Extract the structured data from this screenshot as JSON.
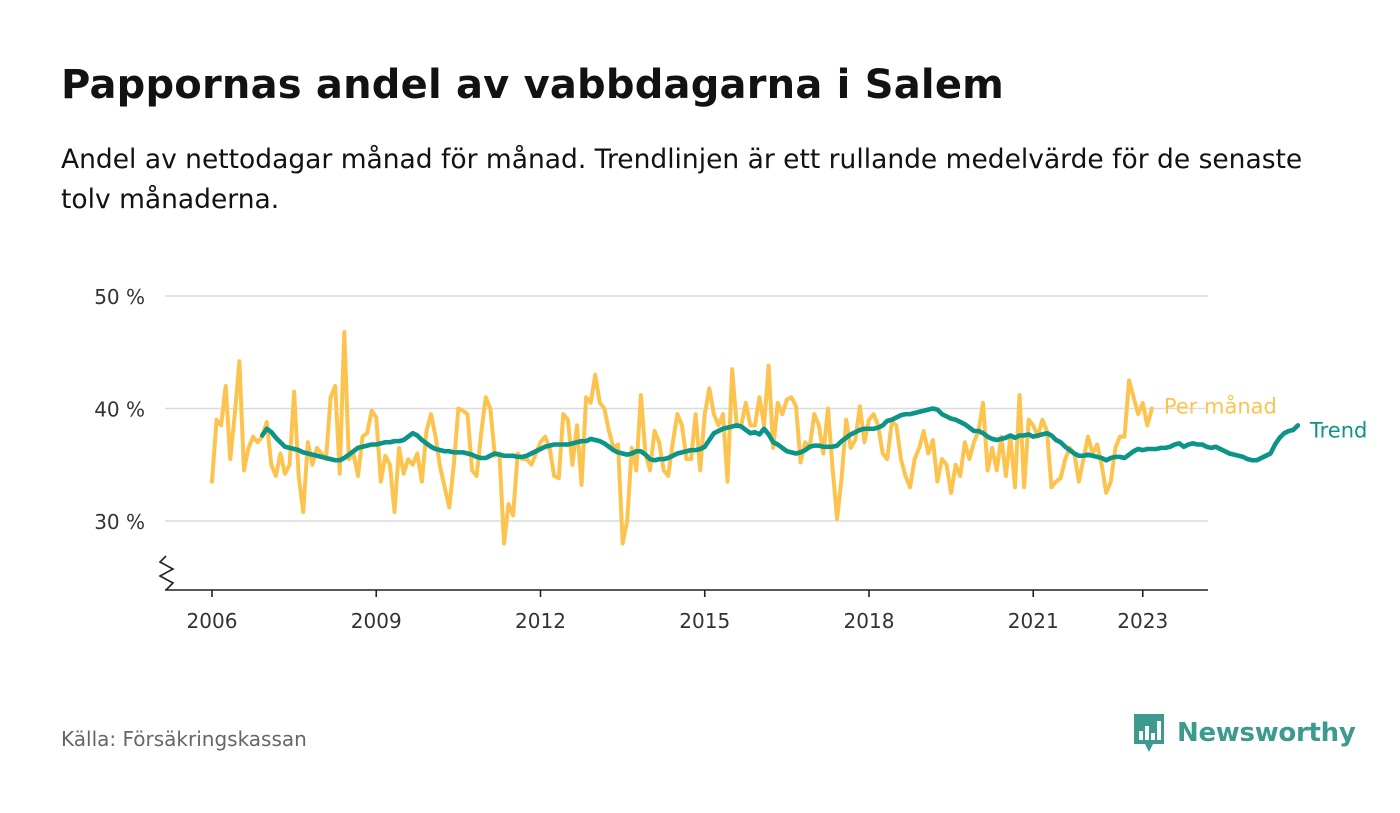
{
  "title": "Pappornas andel av vabbdagarna i Salem",
  "subtitle": "Andel av nettodagar månad för månad. Trendlinjen är ett rullande medelvärde för de senaste tolv månaderna.",
  "source": "Källa: Försäkringskassan",
  "brand": {
    "name": "Newsworthy",
    "color": "#3d9a8f"
  },
  "chart_data": {
    "type": "line",
    "title": "Pappornas andel av vabbdagarna i Salem",
    "xlabel": "",
    "ylabel": "",
    "x_ticks": [
      "2006",
      "2009",
      "2012",
      "2015",
      "2018",
      "2021",
      "2023"
    ],
    "y_ticks": [
      "30 %",
      "40 %",
      "50 %"
    ],
    "ylim": [
      25,
      50
    ],
    "xlim": [
      "2005-08",
      "2024-09"
    ],
    "grid": true,
    "legend": "inline labels at right end of lines",
    "start_month": "2006-01",
    "series": [
      {
        "name": "Per månad",
        "color": "#fcc44f",
        "values": [
          33.5,
          39.0,
          38.5,
          42.0,
          35.5,
          39.5,
          44.2,
          34.5,
          36.5,
          37.5,
          37.0,
          37.5,
          38.8,
          35.0,
          34.0,
          36.0,
          34.2,
          35.0,
          41.5,
          34.0,
          30.8,
          37.0,
          35.0,
          36.5,
          36.0,
          35.5,
          41.0,
          42.0,
          34.2,
          46.8,
          35.5,
          36.0,
          34.0,
          37.5,
          37.8,
          39.8,
          39.2,
          33.5,
          35.8,
          35.0,
          30.8,
          36.5,
          34.2,
          35.5,
          35.0,
          36.0,
          33.5,
          38.0,
          39.5,
          37.5,
          34.8,
          33.0,
          31.2,
          35.0,
          40.0,
          39.8,
          39.5,
          34.5,
          34.0,
          37.8,
          41.0,
          40.0,
          35.8,
          36.0,
          28.0,
          31.5,
          30.5,
          36.0,
          35.5,
          35.5,
          35.0,
          36.0,
          37.0,
          37.5,
          36.5,
          34.0,
          33.8,
          39.5,
          39.0,
          35.0,
          38.5,
          33.2,
          41.0,
          40.5,
          43.0,
          40.5,
          40.0,
          38.0,
          36.5,
          36.8,
          28.0,
          30.0,
          36.5,
          34.5,
          41.2,
          36.0,
          34.5,
          38.0,
          37.0,
          34.5,
          34.0,
          37.0,
          39.5,
          38.5,
          35.5,
          35.5,
          39.5,
          34.5,
          39.5,
          41.8,
          39.5,
          38.5,
          39.5,
          33.5,
          43.5,
          38.5,
          38.5,
          40.5,
          38.5,
          38.5,
          41.0,
          38.5,
          43.8,
          36.5,
          40.5,
          39.5,
          40.8,
          41.0,
          40.2,
          35.2,
          37.0,
          36.5,
          39.5,
          38.5,
          36.0,
          40.0,
          34.8,
          30.2,
          33.8,
          39.0,
          36.5,
          37.2,
          40.2,
          37.0,
          39.0,
          39.5,
          38.5,
          36.0,
          35.5,
          38.8,
          38.5,
          35.5,
          34.0,
          33.0,
          35.5,
          36.5,
          38.0,
          36.0,
          37.2,
          33.5,
          35.5,
          35.0,
          32.5,
          35.0,
          34.0,
          37.0,
          35.5,
          37.0,
          38.0,
          40.5,
          34.5,
          36.5,
          34.5,
          37.5,
          34.0,
          37.5,
          33.0,
          41.2,
          33.0,
          39.0,
          38.5,
          37.5,
          39.0,
          38.0,
          33.0,
          33.5,
          33.8,
          35.5,
          36.5,
          36.0,
          33.5,
          35.5,
          37.5,
          36.0,
          36.8,
          35.0,
          32.5,
          33.5,
          36.5,
          37.5,
          37.5,
          42.5,
          41.0,
          39.5,
          40.5,
          38.5,
          40.0
        ]
      },
      {
        "name": "Trend",
        "color": "#0d9488",
        "start_month": "2006-12",
        "values": [
          37.6,
          38.2,
          37.9,
          37.4,
          37.0,
          36.6,
          36.5,
          36.4,
          36.3,
          36.1,
          36.0,
          35.9,
          35.8,
          35.7,
          35.6,
          35.5,
          35.4,
          35.4,
          35.6,
          35.9,
          36.2,
          36.5,
          36.6,
          36.7,
          36.8,
          36.8,
          36.9,
          37.0,
          37.0,
          37.1,
          37.1,
          37.2,
          37.5,
          37.8,
          37.6,
          37.2,
          36.9,
          36.6,
          36.4,
          36.3,
          36.2,
          36.2,
          36.1,
          36.1,
          36.1,
          36.0,
          35.9,
          35.7,
          35.6,
          35.6,
          35.8,
          36.0,
          35.9,
          35.8,
          35.8,
          35.8,
          35.7,
          35.7,
          35.8,
          36.0,
          36.2,
          36.4,
          36.6,
          36.7,
          36.8,
          36.8,
          36.8,
          36.8,
          36.9,
          37.0,
          37.1,
          37.1,
          37.3,
          37.2,
          37.1,
          36.9,
          36.6,
          36.3,
          36.1,
          36.0,
          35.9,
          36.0,
          36.2,
          36.2,
          35.9,
          35.5,
          35.4,
          35.5,
          35.5,
          35.6,
          35.8,
          36.0,
          36.1,
          36.2,
          36.3,
          36.3,
          36.4,
          36.6,
          37.2,
          37.8,
          38.0,
          38.2,
          38.3,
          38.4,
          38.5,
          38.4,
          38.1,
          37.8,
          37.9,
          37.7,
          38.2,
          37.7,
          37.0,
          36.8,
          36.5,
          36.2,
          36.1,
          36.0,
          36.1,
          36.3,
          36.6,
          36.7,
          36.7,
          36.6,
          36.6,
          36.6,
          36.7,
          37.1,
          37.4,
          37.7,
          37.9,
          38.1,
          38.2,
          38.2,
          38.2,
          38.3,
          38.5,
          38.9,
          39.0,
          39.2,
          39.4,
          39.5,
          39.5,
          39.6,
          39.7,
          39.8,
          39.9,
          40.0,
          39.9,
          39.5,
          39.3,
          39.1,
          39.0,
          38.8,
          38.6,
          38.3,
          38.0,
          38.0,
          37.8,
          37.5,
          37.3,
          37.2,
          37.3,
          37.4,
          37.6,
          37.4,
          37.6,
          37.6,
          37.7,
          37.5,
          37.6,
          37.7,
          37.8,
          37.6,
          37.2,
          37.0,
          36.6,
          36.3,
          36.0,
          35.8,
          35.8,
          35.9,
          35.8,
          35.7,
          35.6,
          35.4,
          35.6,
          35.7,
          35.7,
          35.6,
          35.9,
          36.2,
          36.4,
          36.3,
          36.4,
          36.4,
          36.4,
          36.5,
          36.5,
          36.6,
          36.8,
          36.9,
          36.6,
          36.8,
          36.9,
          36.8,
          36.8,
          36.6,
          36.5,
          36.6,
          36.4,
          36.2,
          36.0,
          35.9,
          35.8,
          35.7,
          35.5,
          35.4,
          35.4,
          35.6,
          35.8,
          36.0,
          36.8,
          37.4,
          37.8,
          38.0,
          38.1,
          38.5
        ]
      }
    ]
  }
}
